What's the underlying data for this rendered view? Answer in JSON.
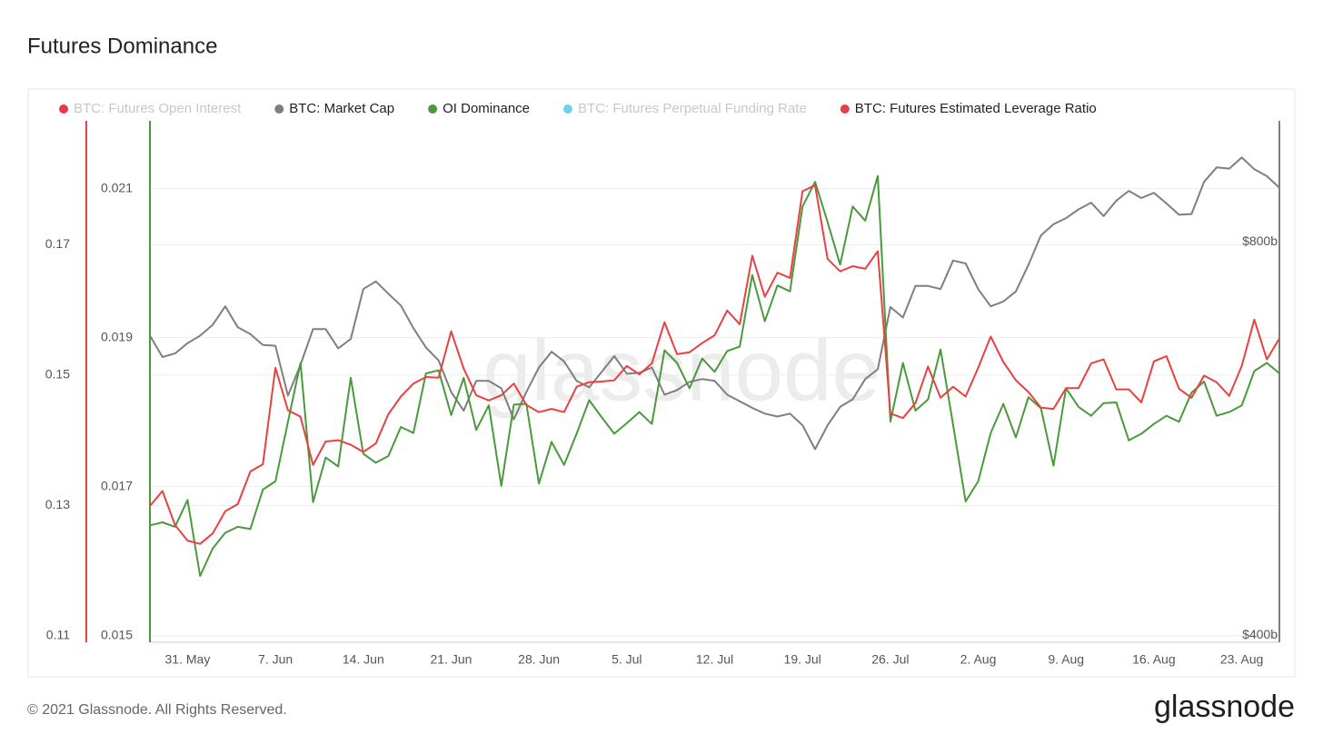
{
  "chart_data": {
    "type": "line",
    "title": "Futures Dominance",
    "watermark": "glassnode",
    "categories": [
      null,
      null,
      null,
      "31. May",
      null,
      null,
      null,
      null,
      null,
      null,
      "7. Jun",
      null,
      null,
      null,
      null,
      null,
      null,
      "14. Jun",
      null,
      null,
      null,
      null,
      null,
      null,
      "21. Jun",
      null,
      null,
      null,
      null,
      null,
      null,
      "28. Jun",
      null,
      null,
      null,
      null,
      null,
      null,
      "5. Jul",
      null,
      null,
      null,
      null,
      null,
      null,
      "12. Jul",
      null,
      null,
      null,
      null,
      null,
      null,
      "19. Jul",
      null,
      null,
      null,
      null,
      null,
      null,
      "26. Jul",
      null,
      null,
      null,
      null,
      null,
      null,
      "2. Aug",
      null,
      null,
      null,
      null,
      null,
      null,
      "9. Aug",
      null,
      null,
      null,
      null,
      null,
      null,
      "16. Aug",
      null,
      null,
      null,
      null,
      null,
      null,
      "23. Aug",
      null,
      null,
      null
    ],
    "ylim": [
      0.109,
      0.189
    ],
    "yticks": [
      0.11,
      0.13,
      0.15,
      0.17
    ],
    "y2lim": [
      0.01491,
      0.02191
    ],
    "y2ticks": [
      0.015,
      0.017,
      0.019,
      0.021
    ],
    "y3lim": [
      395000000000.0,
      990000000000.0
    ],
    "y3log": true,
    "y3ticks": [
      {
        "value": 400000000000.0,
        "label": "$400b"
      },
      {
        "value": 800000000000.0,
        "label": "$800b"
      }
    ],
    "grid": true,
    "series": [
      {
        "name": "BTC: Futures Open Interest",
        "color": "#e8384f",
        "visible": false
      },
      {
        "name": "BTC: Market Cap",
        "color": "#7f7f7f",
        "axis": "y3",
        "visible": true,
        "values": [
          678000000000.0,
          653000000000.0,
          657000000000.0,
          669000000000.0,
          678000000000.0,
          691000000000.0,
          714000000000.0,
          688000000000.0,
          680000000000.0,
          667000000000.0,
          666000000000.0,
          610000000000.0,
          644000000000.0,
          686000000000.0,
          686000000000.0,
          663000000000.0,
          674000000000.0,
          736000000000.0,
          746000000000.0,
          730000000000.0,
          715000000000.0,
          687000000000.0,
          664000000000.0,
          649000000000.0,
          614000000000.0,
          594000000000.0,
          626000000000.0,
          626000000000.0,
          618000000000.0,
          585000000000.0,
          614000000000.0,
          641000000000.0,
          659000000000.0,
          648000000000.0,
          626000000000.0,
          619000000000.0,
          636000000000.0,
          654000000000.0,
          634000000000.0,
          635000000000.0,
          641000000000.0,
          611000000000.0,
          616000000000.0,
          625000000000.0,
          628000000000.0,
          626000000000.0,
          611000000000.0,
          604000000000.0,
          597000000000.0,
          591000000000.0,
          588000000000.0,
          591000000000.0,
          579000000000.0,
          555000000000.0,
          579000000000.0,
          598000000000.0,
          606000000000.0,
          628000000000.0,
          639000000000.0,
          713000000000.0,
          700000000000.0,
          740000000000.0,
          740000000000.0,
          736000000000.0,
          774000000000.0,
          770000000000.0,
          736000000000.0,
          714000000000.0,
          720000000000.0,
          733000000000.0,
          768000000000.0,
          809000000000.0,
          825000000000.0,
          834000000000.0,
          847000000000.0,
          857000000000.0,
          837000000000.0,
          860000000000.0,
          875000000000.0,
          864000000000.0,
          872000000000.0,
          856000000000.0,
          839000000000.0,
          840000000000.0,
          889000000000.0,
          912000000000.0,
          910000000000.0,
          928000000000.0,
          909000000000.0,
          898000000000.0,
          880000000000.0
        ]
      },
      {
        "name": "OI Dominance",
        "color": "#4a9a3c",
        "axis": "y2",
        "visible": true,
        "values": [
          0.01648,
          0.01652,
          0.01646,
          0.01682,
          0.0158,
          0.01617,
          0.01638,
          0.01646,
          0.01643,
          0.01696,
          0.01707,
          0.01787,
          0.01866,
          0.01679,
          0.01739,
          0.01727,
          0.01846,
          0.01744,
          0.01732,
          0.01741,
          0.0178,
          0.01772,
          0.01852,
          0.01856,
          0.01796,
          0.01846,
          0.01776,
          0.01809,
          0.01701,
          0.0181,
          0.01811,
          0.01704,
          0.0176,
          0.01729,
          0.01771,
          0.01816,
          0.01793,
          0.01771,
          0.01785,
          0.018,
          0.01784,
          0.01883,
          0.01866,
          0.01832,
          0.01872,
          0.01854,
          0.01882,
          0.01888,
          0.01984,
          0.01922,
          0.0197,
          0.01962,
          0.02076,
          0.02109,
          0.02055,
          0.01998,
          0.02076,
          0.02057,
          0.02117,
          0.01787,
          0.01866,
          0.01802,
          0.01817,
          0.01884,
          0.01783,
          0.0168,
          0.01707,
          0.01772,
          0.01811,
          0.01766,
          0.0182,
          0.01805,
          0.01728,
          0.01832,
          0.01807,
          0.01795,
          0.01812,
          0.01813,
          0.01762,
          0.01771,
          0.01784,
          0.01795,
          0.01787,
          0.01826,
          0.01841,
          0.01795,
          0.018,
          0.01809,
          0.01855,
          0.01866,
          0.01852
        ]
      },
      {
        "name": "BTC: Futures Perpetual Funding Rate",
        "color": "#6dd3e8",
        "visible": false
      },
      {
        "name": "BTC: Futures Estimated Leverage Ratio",
        "color": "#e84142",
        "axis": "y",
        "visible": true,
        "values": [
          0.1299,
          0.1322,
          0.127,
          0.1246,
          0.1241,
          0.1257,
          0.1291,
          0.1302,
          0.1352,
          0.1363,
          0.1511,
          0.1446,
          0.1436,
          0.1362,
          0.1398,
          0.14,
          0.1393,
          0.1382,
          0.1395,
          0.144,
          0.1467,
          0.1487,
          0.1497,
          0.1496,
          0.1567,
          0.151,
          0.1469,
          0.1461,
          0.1469,
          0.1487,
          0.1454,
          0.1443,
          0.1448,
          0.1443,
          0.1482,
          0.1489,
          0.149,
          0.1492,
          0.1514,
          0.1501,
          0.1518,
          0.1581,
          0.1532,
          0.1535,
          0.1549,
          0.1561,
          0.1599,
          0.1578,
          0.1683,
          0.162,
          0.1657,
          0.1649,
          0.1782,
          0.1791,
          0.1678,
          0.1659,
          0.1667,
          0.1663,
          0.169,
          0.1441,
          0.1434,
          0.1457,
          0.1513,
          0.1465,
          0.1482,
          0.1467,
          0.1511,
          0.1559,
          0.152,
          0.1492,
          0.1474,
          0.145,
          0.1448,
          0.148,
          0.148,
          0.1518,
          0.1524,
          0.1478,
          0.1478,
          0.1458,
          0.1521,
          0.1529,
          0.1479,
          0.1465,
          0.1499,
          0.1489,
          0.1468,
          0.1514,
          0.1585,
          0.1524,
          0.1556
        ]
      }
    ]
  },
  "footer": {
    "copyright": "© 2021 Glassnode. All Rights Reserved.",
    "logo": "glassnode"
  }
}
